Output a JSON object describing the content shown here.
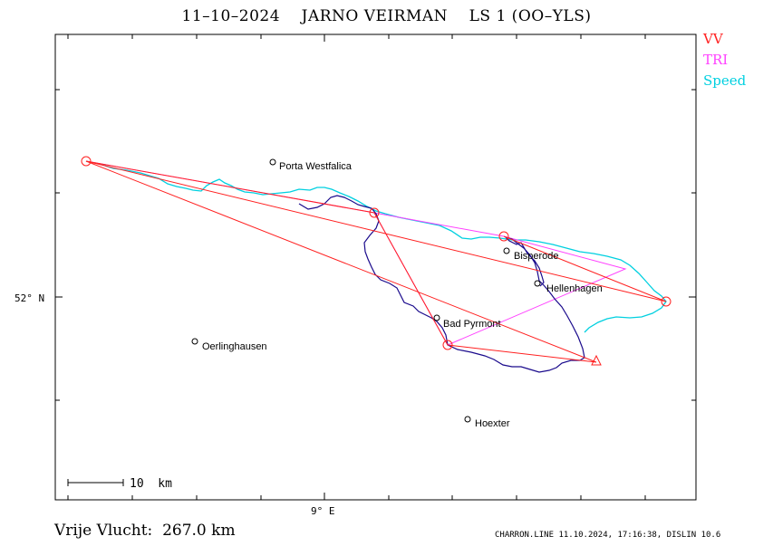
{
  "title": "11–10–2024    JARNO VEIRMAN    LS 1 (OO–YLS)",
  "legend": [
    {
      "label": "VV",
      "color": "#ff2020"
    },
    {
      "label": "TRI",
      "color": "#ff40ff"
    },
    {
      "label": "Speed",
      "color": "#00d0e0"
    }
  ],
  "axes": {
    "lat_label": "52° N",
    "lon_label": "9° E"
  },
  "places": [
    {
      "name": "Porta Westfalica"
    },
    {
      "name": "Bisperode"
    },
    {
      "name": "Hellenhagen"
    },
    {
      "name": "Bad Pyrmont"
    },
    {
      "name": "Oerlinghausen"
    },
    {
      "name": "Hoexter"
    }
  ],
  "scale_label": "10  km",
  "free_flight_label": "Vrije Vlucht:  267.0 km",
  "footer": "CHARRON.LINE 11.10.2024, 17:16:38, DISLIN 10.6",
  "colors": {
    "track": "#1a0a8c",
    "vv": "#ff2020",
    "tri": "#ff40ff",
    "speed": "#00d0e0"
  }
}
